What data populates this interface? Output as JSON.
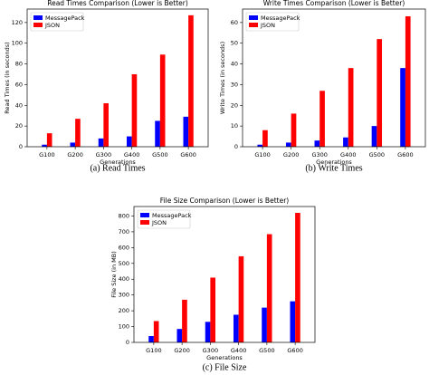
{
  "chart_data": [
    {
      "type": "bar",
      "title": "Read Times Comparison (Lower is Better)",
      "caption": "(a) Read Times",
      "xlabel": "Generations",
      "ylabel": "Read Times (in seconds)",
      "categories": [
        "G100",
        "G200",
        "G300",
        "G400",
        "G500",
        "G600"
      ],
      "series": [
        {
          "name": "MessagePack",
          "color": "#0000ff",
          "values": [
            2,
            4,
            8,
            10,
            25,
            29
          ]
        },
        {
          "name": "JSON",
          "color": "#ff0000",
          "values": [
            13,
            27,
            42,
            70,
            89,
            127
          ]
        }
      ],
      "ylim": [
        0,
        133
      ],
      "yticks": [
        0,
        20,
        40,
        60,
        80,
        100,
        120
      ],
      "legend": "upper left"
    },
    {
      "type": "bar",
      "title": "Write Times Comparison (Lower is Better)",
      "caption": "(b) Write Times",
      "xlabel": "Generations",
      "ylabel": "Write Times (in seconds)",
      "categories": [
        "G100",
        "G200",
        "G300",
        "G400",
        "G500",
        "G600"
      ],
      "series": [
        {
          "name": "MessagePack",
          "color": "#0000ff",
          "values": [
            1,
            2,
            3,
            4.5,
            10,
            38
          ]
        },
        {
          "name": "JSON",
          "color": "#ff0000",
          "values": [
            8,
            16,
            27,
            38,
            52,
            63
          ]
        }
      ],
      "ylim": [
        0,
        66.5
      ],
      "yticks": [
        0,
        10,
        20,
        30,
        40,
        50,
        60
      ],
      "legend": "upper left"
    },
    {
      "type": "bar",
      "title": "File Size Comparison (Lower is Better)",
      "caption": "(c) File Size",
      "xlabel": "Generations",
      "ylabel": "File Size (in MB)",
      "categories": [
        "G100",
        "G200",
        "G300",
        "G400",
        "G500",
        "G600"
      ],
      "series": [
        {
          "name": "MessagePack",
          "color": "#0000ff",
          "values": [
            40,
            85,
            130,
            175,
            220,
            260
          ]
        },
        {
          "name": "JSON",
          "color": "#ff0000",
          "values": [
            135,
            270,
            410,
            545,
            685,
            820
          ]
        }
      ],
      "ylim": [
        0,
        860
      ],
      "yticks": [
        0,
        100,
        200,
        300,
        400,
        500,
        600,
        700,
        800
      ],
      "legend": "upper left"
    }
  ]
}
